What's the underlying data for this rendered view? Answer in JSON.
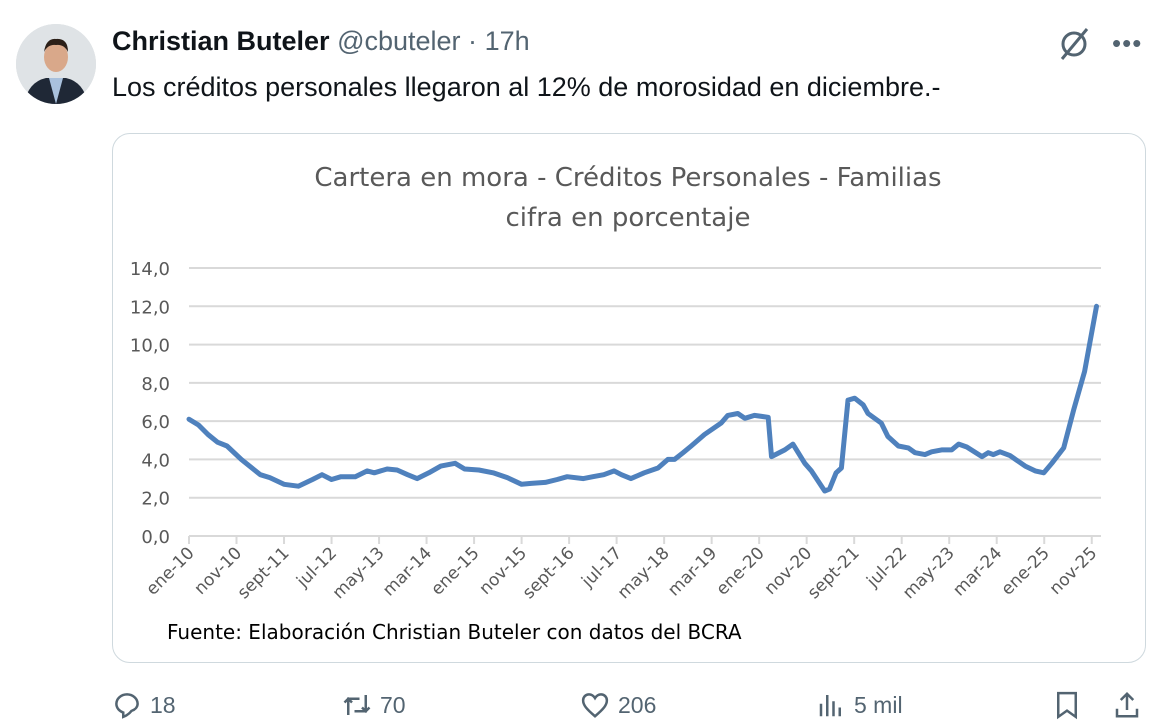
{
  "tweet": {
    "author_name": "Christian Buteler",
    "handle": "@cbuteler",
    "separator": "·",
    "time": "17h",
    "text": "Los créditos personales llegaron al 12% de morosidad en diciembre.-",
    "more_icon": "more-horizontal-icon",
    "grok_icon": "grok-icon"
  },
  "actions": {
    "replies": "18",
    "reposts": "70",
    "likes": "206",
    "views": "5 mil"
  },
  "chart_data": {
    "type": "line",
    "title": "Cartera en mora - Créditos Personales - Familias",
    "subtitle": "cifra en porcentaje",
    "source": "Fuente: Elaboración Christian Buteler con datos del BCRA",
    "xlabel": "",
    "ylabel": "",
    "ylim": [
      0,
      14
    ],
    "yticks": [
      "0,0",
      "2,0",
      "4,0",
      "6,0",
      "8,0",
      "10,0",
      "12,0",
      "14,0"
    ],
    "x_unit": "months since ene-10",
    "xlim": [
      0,
      191
    ],
    "xtick_labels": [
      "ene-10",
      "nov-10",
      "sept-11",
      "jul-12",
      "may-13",
      "mar-14",
      "ene-15",
      "nov-15",
      "sept-16",
      "jul-17",
      "may-18",
      "mar-19",
      "ene-20",
      "nov-20",
      "sept-21",
      "jul-22",
      "may-23",
      "mar-24",
      "ene-25",
      "nov-25"
    ],
    "grid": true,
    "legend": "none",
    "color": "#4f81bd",
    "series": [
      {
        "name": "Cartera en mora",
        "x": [
          0,
          2,
          4,
          6,
          8,
          11,
          13,
          15,
          17,
          20,
          23,
          26,
          28,
          30,
          32,
          35,
          37.5,
          39,
          41.7,
          43.8,
          46,
          48,
          50.5,
          53,
          56,
          58,
          61,
          64,
          67,
          70,
          72,
          75,
          77.5,
          79.6,
          83,
          85,
          87.3,
          89.5,
          91,
          93,
          95.8,
          98.7,
          100.8,
          102.2,
          104,
          105.7,
          108.5,
          112,
          113.4,
          115.5,
          117,
          119,
          121.9,
          122.6,
          125.4,
          127.1,
          129.6,
          131,
          133.8,
          134.8,
          136.2,
          137.3,
          138.7,
          140.1,
          141.9,
          142.9,
          145.7,
          147.1,
          149.3,
          151.4,
          152.8,
          154.9,
          156.3,
          158.4,
          160.5,
          162,
          163.7,
          166.9,
          168.2,
          169.3,
          170.7,
          172.8,
          176,
          178.1,
          179.9,
          181.6,
          184.1,
          186.2,
          188.5,
          191
        ],
        "values": [
          6.1,
          5.8,
          5.3,
          4.9,
          4.7,
          4.0,
          3.6,
          3.2,
          3.05,
          2.7,
          2.6,
          2.95,
          3.2,
          2.95,
          3.1,
          3.1,
          3.4,
          3.3,
          3.5,
          3.45,
          3.2,
          3.0,
          3.3,
          3.65,
          3.8,
          3.5,
          3.45,
          3.3,
          3.05,
          2.7,
          2.75,
          2.8,
          2.95,
          3.1,
          3.0,
          3.1,
          3.2,
          3.4,
          3.2,
          3.0,
          3.3,
          3.55,
          4.0,
          4.0,
          4.35,
          4.7,
          5.3,
          5.9,
          6.3,
          6.4,
          6.15,
          6.3,
          6.2,
          4.15,
          4.5,
          4.8,
          3.8,
          3.4,
          2.35,
          2.45,
          3.3,
          3.55,
          7.1,
          7.2,
          6.85,
          6.4,
          5.9,
          5.2,
          4.7,
          4.6,
          4.35,
          4.25,
          4.4,
          4.5,
          4.5,
          4.8,
          4.65,
          4.15,
          4.35,
          4.25,
          4.4,
          4.2,
          3.65,
          3.4,
          3.3,
          3.8,
          4.6,
          6.6,
          8.6,
          12.0
        ]
      }
    ]
  }
}
